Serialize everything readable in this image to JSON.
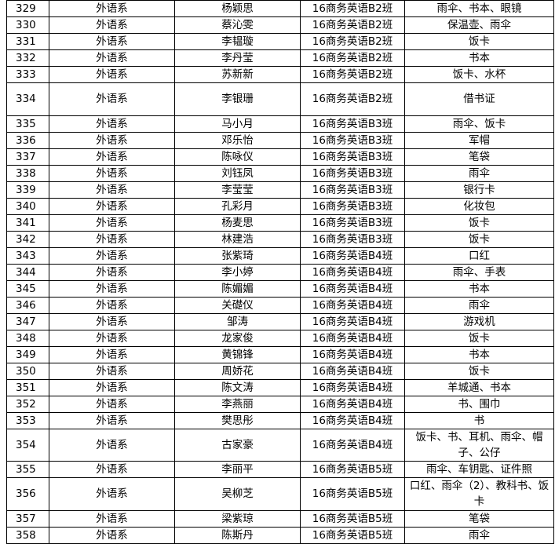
{
  "table": {
    "rows": [
      [
        "329",
        "外语系",
        "杨颖思",
        "16商务英语B2班",
        "雨伞、书本、眼镜"
      ],
      [
        "330",
        "外语系",
        "蔡沁雯",
        "16商务英语B2班",
        "保温壶、雨伞"
      ],
      [
        "331",
        "外语系",
        "李韫璇",
        "16商务英语B2班",
        "饭卡"
      ],
      [
        "332",
        "外语系",
        "李丹莹",
        "16商务英语B2班",
        "书本"
      ],
      [
        "333",
        "外语系",
        "苏新新",
        "16商务英语B2班",
        "饭卡、水杯"
      ],
      [
        "334",
        "外语系",
        "李银珊",
        "16商务英语B2班",
        "借书证"
      ],
      [
        "335",
        "外语系",
        "马小月",
        "16商务英语B3班",
        "雨伞、饭卡"
      ],
      [
        "336",
        "外语系",
        "邓乐怡",
        "16商务英语B3班",
        "军帽"
      ],
      [
        "337",
        "外语系",
        "陈咏仪",
        "16商务英语B3班",
        "笔袋"
      ],
      [
        "338",
        "外语系",
        "刘钰凤",
        "16商务英语B3班",
        "雨伞"
      ],
      [
        "339",
        "外语系",
        "李莹莹",
        "16商务英语B3班",
        "银行卡"
      ],
      [
        "340",
        "外语系",
        "孔彩月",
        "16商务英语B3班",
        "化妆包"
      ],
      [
        "341",
        "外语系",
        "杨麦思",
        "16商务英语B3班",
        "饭卡"
      ],
      [
        "342",
        "外语系",
        "林建浩",
        "16商务英语B3班",
        "饭卡"
      ],
      [
        "343",
        "外语系",
        "张紫琦",
        "16商务英语B4班",
        "口红"
      ],
      [
        "344",
        "外语系",
        "李小婷",
        "16商务英语B4班",
        "雨伞、手表"
      ],
      [
        "345",
        "外语系",
        "陈媚媚",
        "16商务英语B4班",
        "书本"
      ],
      [
        "346",
        "外语系",
        "关礎仪",
        "16商务英语B4班",
        "雨伞"
      ],
      [
        "347",
        "外语系",
        "邹涛",
        "16商务英语B4班",
        "游戏机"
      ],
      [
        "348",
        "外语系",
        "龙家俊",
        "16商务英语B4班",
        "饭卡"
      ],
      [
        "349",
        "外语系",
        "黄锦锋",
        "16商务英语B4班",
        "书本"
      ],
      [
        "350",
        "外语系",
        "周娇花",
        "16商务英语B4班",
        "饭卡"
      ],
      [
        "351",
        "外语系",
        "陈文涛",
        "16商务英语B4班",
        "羊城通、书本"
      ],
      [
        "352",
        "外语系",
        "李燕丽",
        "16商务英语B4班",
        "书、围巾"
      ],
      [
        "353",
        "外语系",
        "樊思彤",
        "16商务英语B4班",
        "书"
      ],
      [
        "354",
        "外语系",
        "古家豪",
        "16商务英语B4班",
        "饭卡、书、耳机、雨伞、帽子、公仔"
      ],
      [
        "355",
        "外语系",
        "李丽平",
        "16商务英语B5班",
        "雨伞、车钥匙、证件照"
      ],
      [
        "356",
        "外语系",
        "吴柳芝",
        "16商务英语B5班",
        "口红、雨伞（2）、教科书、饭卡"
      ],
      [
        "357",
        "外语系",
        "梁紫琼",
        "16商务英语B5班",
        "笔袋"
      ],
      [
        "358",
        "外语系",
        "陈斯丹",
        "16商务英语B5班",
        "雨伞"
      ]
    ]
  }
}
